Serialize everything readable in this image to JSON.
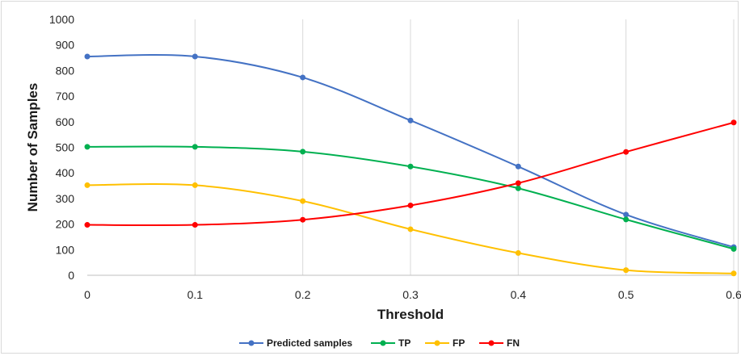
{
  "chart_data": {
    "type": "line",
    "xlabel": "Threshold",
    "ylabel": "Number of Samples",
    "x": [
      0,
      0.1,
      0.2,
      0.3,
      0.4,
      0.5,
      0.6
    ],
    "x_tick_labels": [
      "0",
      "0.1",
      "0.2",
      "0.3",
      "0.4",
      "0.5",
      "0.6"
    ],
    "ylim": [
      0,
      1000
    ],
    "y_ticks": [
      0,
      100,
      200,
      300,
      400,
      500,
      600,
      700,
      800,
      900,
      1000
    ],
    "grid": "vertical",
    "legend_position": "bottom",
    "smooth": true,
    "series": [
      {
        "name": "Predicted samples",
        "color": "#4472C4",
        "values": [
          855,
          855,
          773,
          605,
          425,
          237,
          110
        ]
      },
      {
        "name": "TP",
        "color": "#00B050",
        "values": [
          502,
          502,
          483,
          425,
          340,
          218,
          103
        ]
      },
      {
        "name": "FP",
        "color": "#FFC000",
        "values": [
          352,
          352,
          290,
          180,
          87,
          20,
          7
        ]
      },
      {
        "name": "FN",
        "color": "#FF0000",
        "values": [
          197,
          197,
          217,
          273,
          360,
          482,
          597
        ]
      }
    ]
  }
}
